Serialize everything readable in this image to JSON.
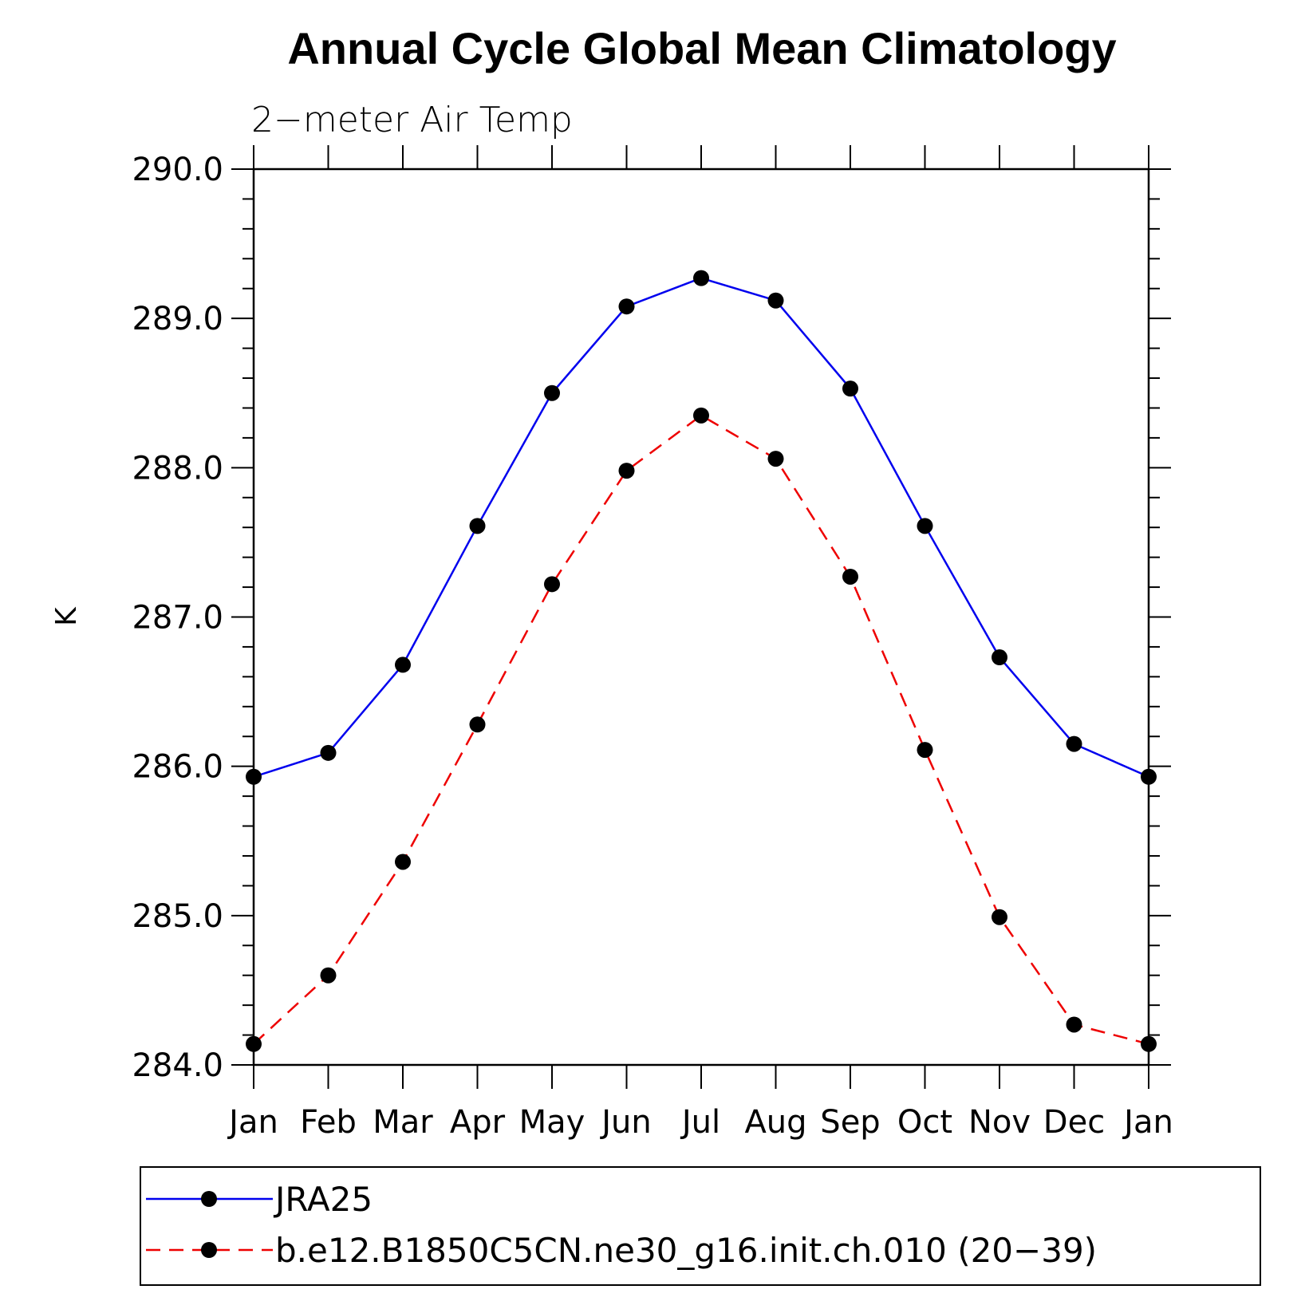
{
  "chart_data": {
    "type": "line",
    "title": "Annual Cycle Global Mean Climatology",
    "subtitle": "2−meter Air Temp",
    "ylabel": "K",
    "xlabel": "",
    "ylim": [
      284.0,
      290.0
    ],
    "yticks": [
      "284.0",
      "285.0",
      "286.0",
      "287.0",
      "288.0",
      "289.0",
      "290.0"
    ],
    "categories": [
      "Jan",
      "Feb",
      "Mar",
      "Apr",
      "May",
      "Jun",
      "Jul",
      "Aug",
      "Sep",
      "Oct",
      "Nov",
      "Dec",
      "Jan"
    ],
    "legend_position": "bottom",
    "series": [
      {
        "name": "JRA25",
        "color": "#0000ee",
        "style": "solid",
        "values": [
          285.93,
          286.09,
          286.68,
          287.61,
          288.5,
          289.08,
          289.27,
          289.12,
          288.53,
          287.61,
          286.73,
          286.15,
          285.93
        ]
      },
      {
        "name": "b.e12.B1850C5CN.ne30_g16.init.ch.010 (20−39)",
        "color": "#ee0000",
        "style": "dashed",
        "values": [
          284.14,
          284.6,
          285.36,
          286.28,
          287.22,
          287.98,
          288.35,
          288.06,
          287.27,
          286.11,
          284.99,
          284.27,
          284.14
        ]
      }
    ]
  }
}
